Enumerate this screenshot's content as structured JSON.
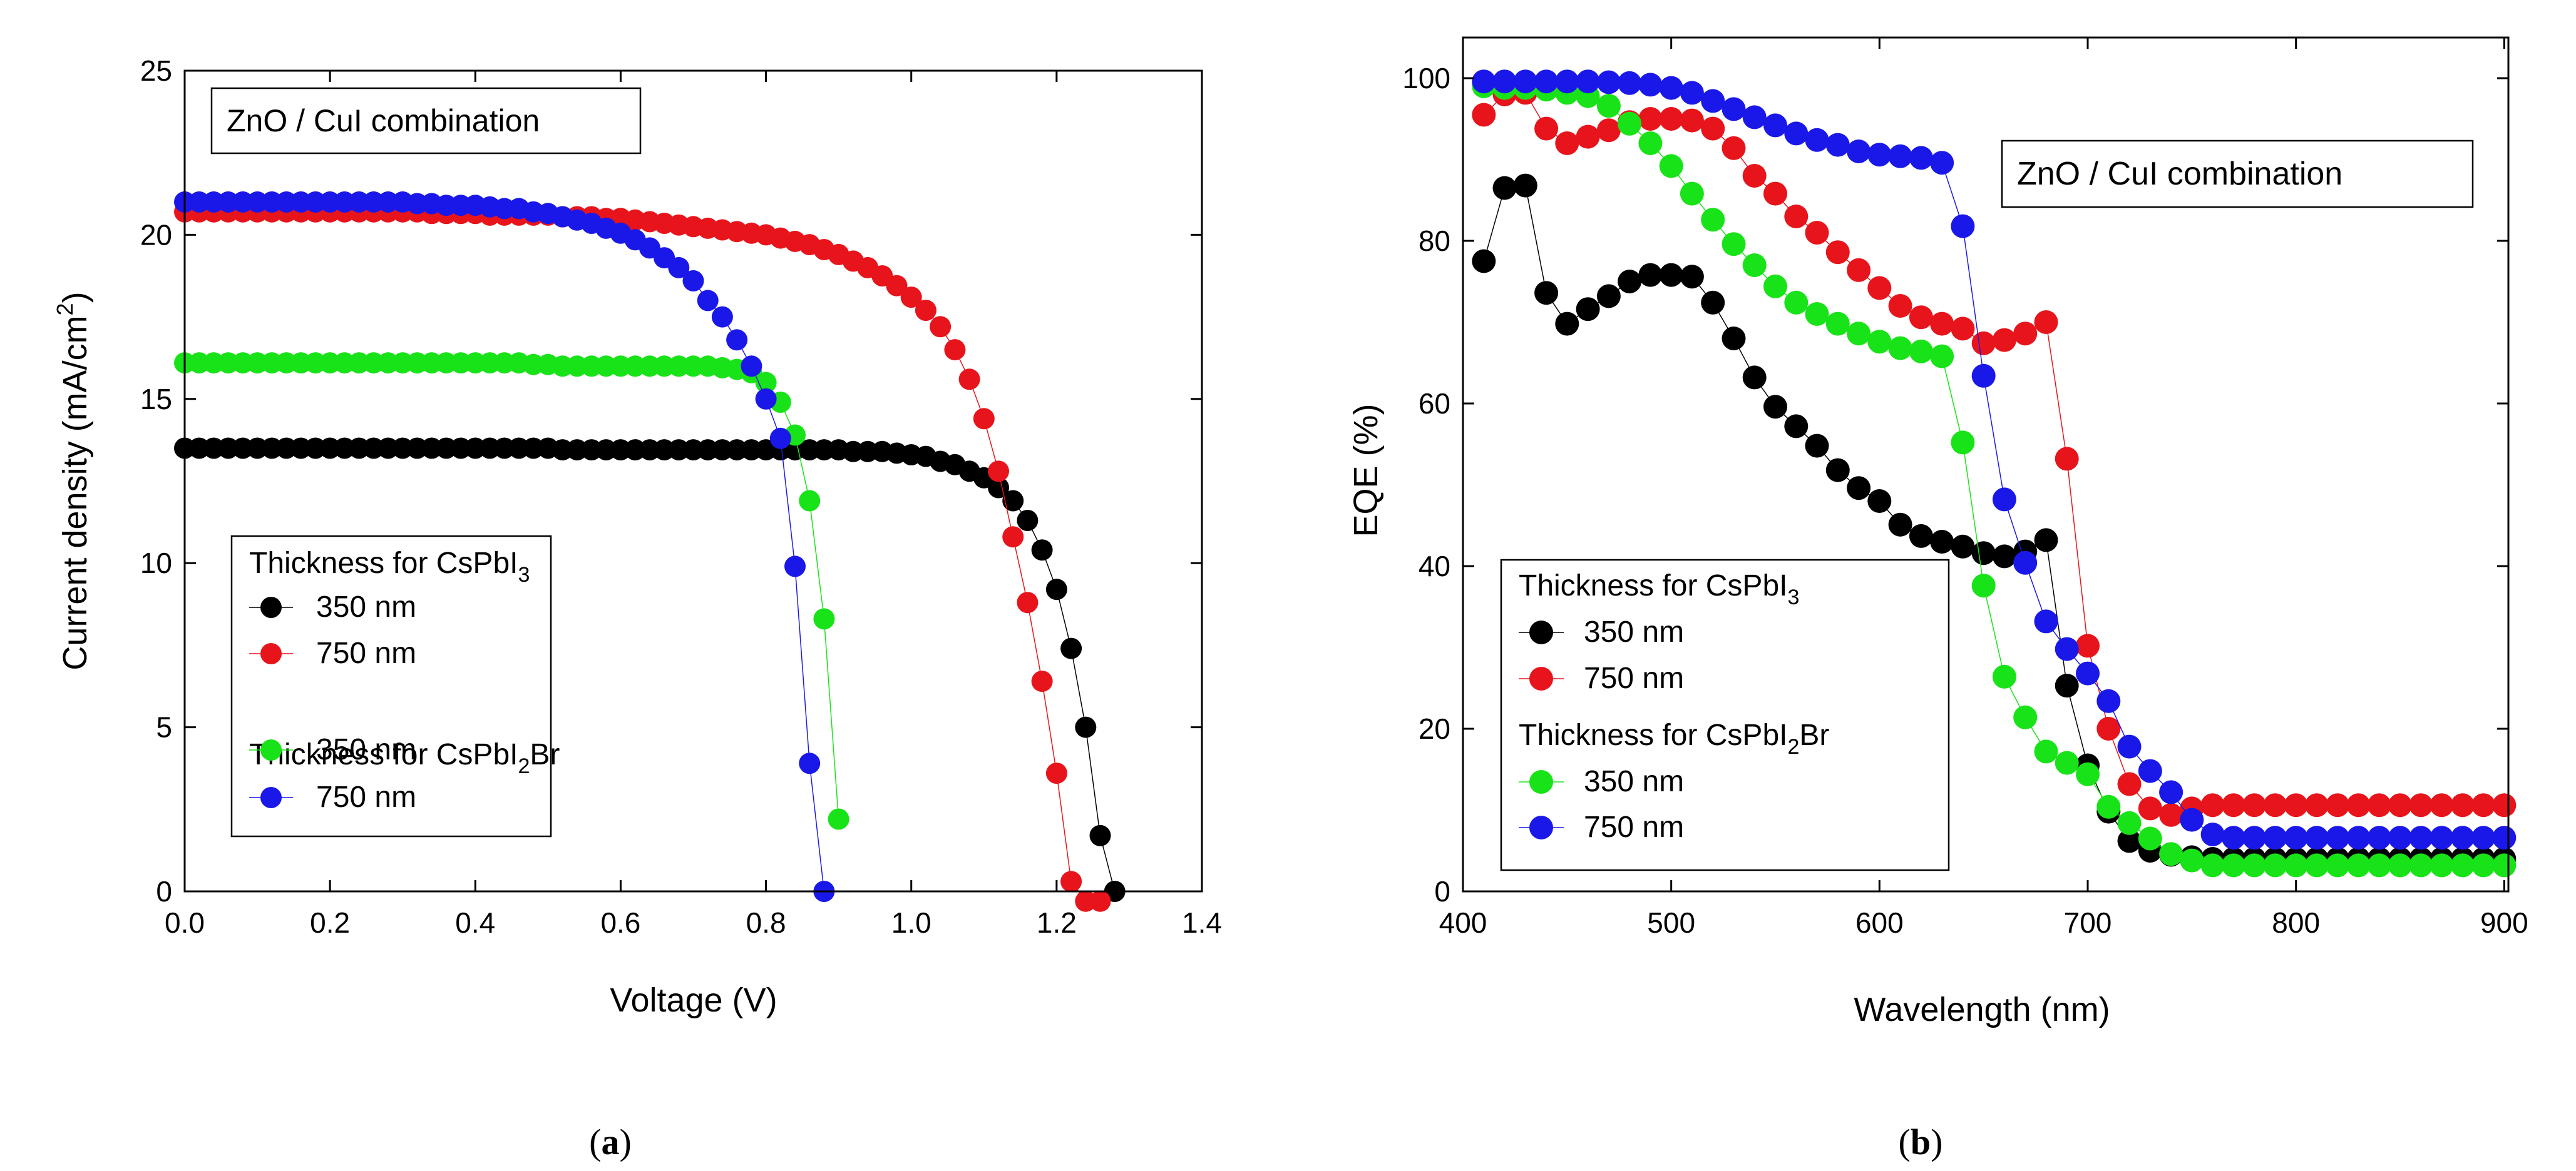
{
  "chart_data": [
    {
      "type": "scatter",
      "panel_label_prefix": "(",
      "panel_label_bold": "a",
      "panel_label_suffix": ")",
      "xlabel": "Voltage (V)",
      "ylabel_main": "Current density (mA/cm",
      "ylabel_sup": "2",
      "ylabel_tail": ")",
      "xlim": [
        0.0,
        1.4
      ],
      "ylim": [
        0,
        25
      ],
      "xticks": [
        0.0,
        0.2,
        0.4,
        0.6,
        0.8,
        1.0,
        1.2,
        1.4
      ],
      "xtick_labels": [
        "0.0",
        "0.2",
        "0.4",
        "0.6",
        "0.8",
        "1.0",
        "1.2",
        "1.4"
      ],
      "yticks": [
        0,
        5,
        10,
        15,
        20,
        25
      ],
      "ytick_labels": [
        "0",
        "5",
        "10",
        "15",
        "20",
        "25"
      ],
      "annotation": "ZnO / CuI combination",
      "legend": {
        "group1_title": "Thickness for CsPbI",
        "group1_sub": "3",
        "group2_title_pre": "Thickness for CsPbI",
        "group2_sub": "2",
        "group2_title_post": "Br",
        "placement": "lower-left"
      },
      "series": [
        {
          "name": "350 nm",
          "group": "CsPbI3",
          "color": "#000000",
          "x": [
            0.0,
            0.02,
            0.04,
            0.06,
            0.08,
            0.1,
            0.12,
            0.14,
            0.16,
            0.18,
            0.2,
            0.22,
            0.24,
            0.26,
            0.28,
            0.3,
            0.32,
            0.34,
            0.36,
            0.38,
            0.4,
            0.42,
            0.44,
            0.46,
            0.48,
            0.5,
            0.52,
            0.54,
            0.56,
            0.58,
            0.6,
            0.62,
            0.64,
            0.66,
            0.68,
            0.7,
            0.72,
            0.74,
            0.76,
            0.78,
            0.8,
            0.82,
            0.84,
            0.86,
            0.88,
            0.9,
            0.92,
            0.94,
            0.96,
            0.98,
            1.0,
            1.02,
            1.04,
            1.06,
            1.08,
            1.1,
            1.12,
            1.14,
            1.16,
            1.18,
            1.2,
            1.22,
            1.24,
            1.26,
            1.28
          ],
          "y": [
            13.5,
            13.5,
            13.5,
            13.5,
            13.5,
            13.5,
            13.5,
            13.5,
            13.5,
            13.5,
            13.5,
            13.5,
            13.5,
            13.5,
            13.5,
            13.5,
            13.5,
            13.5,
            13.5,
            13.5,
            13.5,
            13.5,
            13.5,
            13.5,
            13.5,
            13.5,
            13.45,
            13.45,
            13.45,
            13.45,
            13.45,
            13.45,
            13.45,
            13.45,
            13.45,
            13.45,
            13.45,
            13.45,
            13.45,
            13.45,
            13.45,
            13.45,
            13.45,
            13.45,
            13.45,
            13.45,
            13.4,
            13.4,
            13.4,
            13.35,
            13.3,
            13.25,
            13.1,
            13.0,
            12.8,
            12.6,
            12.3,
            11.9,
            11.3,
            10.4,
            9.2,
            7.4,
            5.0,
            1.7,
            0.0
          ]
        },
        {
          "name": "750 nm",
          "group": "CsPbI3",
          "color": "#e8141b",
          "x": [
            0.0,
            0.02,
            0.04,
            0.06,
            0.08,
            0.1,
            0.12,
            0.14,
            0.16,
            0.18,
            0.2,
            0.22,
            0.24,
            0.26,
            0.28,
            0.3,
            0.32,
            0.34,
            0.36,
            0.38,
            0.4,
            0.42,
            0.44,
            0.46,
            0.48,
            0.5,
            0.52,
            0.54,
            0.56,
            0.58,
            0.6,
            0.62,
            0.64,
            0.66,
            0.68,
            0.7,
            0.72,
            0.74,
            0.76,
            0.78,
            0.8,
            0.82,
            0.84,
            0.86,
            0.88,
            0.9,
            0.92,
            0.94,
            0.96,
            0.98,
            1.0,
            1.02,
            1.04,
            1.06,
            1.08,
            1.1,
            1.12,
            1.14,
            1.16,
            1.18,
            1.2,
            1.22,
            1.24,
            1.26
          ],
          "y": [
            20.7,
            20.7,
            20.7,
            20.7,
            20.7,
            20.7,
            20.7,
            20.7,
            20.7,
            20.7,
            20.7,
            20.7,
            20.7,
            20.7,
            20.7,
            20.7,
            20.7,
            20.65,
            20.65,
            20.65,
            20.65,
            20.6,
            20.6,
            20.6,
            20.6,
            20.6,
            20.55,
            20.55,
            20.55,
            20.5,
            20.5,
            20.45,
            20.4,
            20.35,
            20.3,
            20.25,
            20.2,
            20.15,
            20.1,
            20.05,
            20.0,
            19.9,
            19.8,
            19.7,
            19.55,
            19.4,
            19.2,
            19.0,
            18.75,
            18.45,
            18.1,
            17.7,
            17.2,
            16.5,
            15.6,
            14.4,
            12.8,
            10.8,
            8.8,
            6.4,
            3.6,
            0.3,
            -0.3,
            -0.3
          ]
        },
        {
          "name": "350 nm",
          "group": "CsPbI2Br",
          "color": "#18e318",
          "x": [
            0.0,
            0.02,
            0.04,
            0.06,
            0.08,
            0.1,
            0.12,
            0.14,
            0.16,
            0.18,
            0.2,
            0.22,
            0.24,
            0.26,
            0.28,
            0.3,
            0.32,
            0.34,
            0.36,
            0.38,
            0.4,
            0.42,
            0.44,
            0.46,
            0.48,
            0.5,
            0.52,
            0.54,
            0.56,
            0.58,
            0.6,
            0.62,
            0.64,
            0.66,
            0.68,
            0.7,
            0.72,
            0.74,
            0.76,
            0.78,
            0.8,
            0.82,
            0.84,
            0.86,
            0.88,
            0.9
          ],
          "y": [
            16.1,
            16.1,
            16.1,
            16.1,
            16.1,
            16.1,
            16.1,
            16.1,
            16.1,
            16.1,
            16.1,
            16.1,
            16.1,
            16.1,
            16.1,
            16.1,
            16.1,
            16.1,
            16.1,
            16.1,
            16.1,
            16.1,
            16.1,
            16.1,
            16.05,
            16.05,
            16.0,
            16.0,
            16.0,
            16.0,
            16.0,
            16.0,
            16.0,
            16.0,
            16.0,
            16.0,
            16.0,
            15.95,
            15.9,
            15.8,
            15.5,
            14.9,
            13.9,
            11.9,
            8.3,
            2.2
          ]
        },
        {
          "name": "750 nm",
          "group": "CsPbI2Br",
          "color": "#1a18e8",
          "x": [
            0.0,
            0.02,
            0.04,
            0.06,
            0.08,
            0.1,
            0.12,
            0.14,
            0.16,
            0.18,
            0.2,
            0.22,
            0.24,
            0.26,
            0.28,
            0.3,
            0.32,
            0.34,
            0.36,
            0.38,
            0.4,
            0.42,
            0.44,
            0.46,
            0.48,
            0.5,
            0.52,
            0.54,
            0.56,
            0.58,
            0.6,
            0.62,
            0.64,
            0.66,
            0.68,
            0.7,
            0.72,
            0.74,
            0.76,
            0.78,
            0.8,
            0.82,
            0.84,
            0.86,
            0.88
          ],
          "y": [
            21.0,
            21.0,
            21.0,
            21.0,
            21.0,
            21.0,
            21.0,
            21.0,
            21.0,
            21.0,
            21.0,
            21.0,
            21.0,
            21.0,
            21.0,
            21.0,
            20.95,
            20.95,
            20.9,
            20.9,
            20.9,
            20.85,
            20.8,
            20.8,
            20.7,
            20.65,
            20.55,
            20.45,
            20.35,
            20.2,
            20.05,
            19.85,
            19.6,
            19.3,
            19.0,
            18.6,
            18.0,
            17.5,
            16.8,
            16.0,
            15.0,
            13.8,
            9.9,
            3.9,
            0.0
          ]
        }
      ]
    },
    {
      "type": "scatter",
      "panel_label_prefix": "(",
      "panel_label_bold": "b",
      "panel_label_suffix": ")",
      "xlabel": "Wavelength (nm)",
      "ylabel": "EQE (%)",
      "xlim": [
        400,
        902
      ],
      "ylim": [
        0,
        105
      ],
      "xticks": [
        400,
        500,
        600,
        700,
        800,
        900
      ],
      "xtick_labels": [
        "400",
        "500",
        "600",
        "700",
        "800",
        "900"
      ],
      "yticks": [
        0,
        20,
        40,
        60,
        80,
        100
      ],
      "ytick_labels": [
        "0",
        "20",
        "40",
        "60",
        "80",
        "100"
      ],
      "annotation": "ZnO / CuI combination",
      "legend": {
        "group1_title": "Thickness for CsPbI",
        "group1_sub": "3",
        "group2_title_pre": "Thickness for CsPbI",
        "group2_sub": "2",
        "group2_title_post": "Br",
        "placement": "lower-left"
      },
      "series": [
        {
          "name": "350 nm",
          "group": "CsPbI3",
          "color": "#000000",
          "x": [
            410,
            420,
            430,
            440,
            450,
            460,
            470,
            480,
            490,
            500,
            510,
            520,
            530,
            540,
            550,
            560,
            570,
            580,
            590,
            600,
            610,
            620,
            630,
            640,
            650,
            660,
            670,
            680,
            690,
            700,
            710,
            720,
            730,
            740,
            750,
            760,
            770,
            780,
            790,
            800,
            810,
            820,
            830,
            840,
            850,
            860,
            870,
            880,
            890,
            900
          ],
          "y": [
            77.5,
            86.5,
            86.8,
            73.6,
            69.8,
            71.6,
            73.2,
            75.0,
            75.8,
            75.8,
            75.6,
            72.4,
            68.0,
            63.2,
            59.6,
            57.2,
            54.8,
            51.8,
            49.6,
            48.0,
            45.1,
            43.7,
            43.0,
            42.4,
            41.6,
            41.2,
            41.8,
            43.2,
            25.3,
            15.5,
            9.8,
            6.2,
            5.0,
            4.5,
            4.2,
            4.0,
            4.0,
            4.0,
            4.0,
            4.0,
            4.0,
            4.0,
            4.0,
            4.0,
            4.0,
            4.0,
            4.0,
            4.0,
            4.0,
            4.0
          ]
        },
        {
          "name": "750 nm",
          "group": "CsPbI3",
          "color": "#e8141b",
          "x": [
            410,
            420,
            430,
            440,
            450,
            460,
            470,
            480,
            490,
            500,
            510,
            520,
            530,
            540,
            550,
            560,
            570,
            580,
            590,
            600,
            610,
            620,
            630,
            640,
            650,
            660,
            670,
            680,
            690,
            700,
            710,
            720,
            730,
            740,
            750,
            760,
            770,
            780,
            790,
            800,
            810,
            820,
            830,
            840,
            850,
            860,
            870,
            880,
            890,
            900
          ],
          "y": [
            95.5,
            98.0,
            98.2,
            93.8,
            92.0,
            92.8,
            93.6,
            94.6,
            95.0,
            95.0,
            94.8,
            93.8,
            91.4,
            88.0,
            85.8,
            83.0,
            81.0,
            78.6,
            76.4,
            74.2,
            72.0,
            70.6,
            69.8,
            69.2,
            67.4,
            67.8,
            68.6,
            70.0,
            53.2,
            30.2,
            20.0,
            13.2,
            10.2,
            9.4,
            10.2,
            10.6,
            10.6,
            10.6,
            10.6,
            10.6,
            10.6,
            10.6,
            10.6,
            10.6,
            10.6,
            10.6,
            10.6,
            10.6,
            10.6,
            10.6
          ]
        },
        {
          "name": "350 nm",
          "group": "CsPbI2Br",
          "color": "#18e318",
          "x": [
            410,
            420,
            430,
            440,
            450,
            460,
            470,
            480,
            490,
            500,
            510,
            520,
            530,
            540,
            550,
            560,
            570,
            580,
            590,
            600,
            610,
            620,
            630,
            640,
            650,
            660,
            670,
            680,
            690,
            700,
            710,
            720,
            730,
            740,
            750,
            760,
            770,
            780,
            790,
            800,
            810,
            820,
            830,
            840,
            850,
            860,
            870,
            880,
            890,
            900
          ],
          "y": [
            99.0,
            98.8,
            98.8,
            98.6,
            98.2,
            97.8,
            96.6,
            94.4,
            92.0,
            89.2,
            85.8,
            82.6,
            79.6,
            77.0,
            74.4,
            72.4,
            71.0,
            69.8,
            68.6,
            67.6,
            66.8,
            66.4,
            65.8,
            55.2,
            37.6,
            26.4,
            21.4,
            17.2,
            15.8,
            14.4,
            10.4,
            8.4,
            6.5,
            4.6,
            3.8,
            3.2,
            3.2,
            3.2,
            3.2,
            3.2,
            3.2,
            3.2,
            3.2,
            3.2,
            3.2,
            3.2,
            3.2,
            3.2,
            3.2,
            3.2
          ]
        },
        {
          "name": "750 nm",
          "group": "CsPbI2Br",
          "color": "#1a18e8",
          "x": [
            410,
            420,
            430,
            440,
            450,
            460,
            470,
            480,
            490,
            500,
            510,
            520,
            530,
            540,
            550,
            560,
            570,
            580,
            590,
            600,
            610,
            620,
            630,
            640,
            650,
            660,
            670,
            680,
            690,
            700,
            710,
            720,
            730,
            740,
            750,
            760,
            770,
            780,
            790,
            800,
            810,
            820,
            830,
            840,
            850,
            860,
            870,
            880,
            890,
            900
          ],
          "y": [
            99.6,
            99.6,
            99.6,
            99.6,
            99.6,
            99.6,
            99.5,
            99.4,
            99.2,
            98.8,
            98.2,
            97.2,
            96.2,
            95.2,
            94.2,
            93.2,
            92.4,
            91.8,
            91.0,
            90.6,
            90.4,
            90.2,
            89.6,
            81.8,
            63.4,
            48.2,
            40.4,
            33.2,
            29.8,
            26.8,
            23.4,
            17.8,
            14.8,
            12.2,
            8.8,
            7.0,
            6.6,
            6.6,
            6.6,
            6.6,
            6.6,
            6.6,
            6.6,
            6.6,
            6.6,
            6.6,
            6.6,
            6.6,
            6.6,
            6.6
          ]
        }
      ]
    }
  ]
}
